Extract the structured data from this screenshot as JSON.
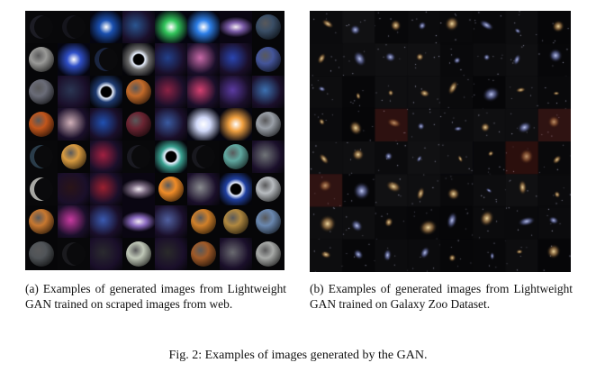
{
  "figure": {
    "caption": "Fig. 2: Examples of images generated by the GAN.",
    "panel_a": {
      "caption": "(a) Examples of generated images from Lightweight GAN trained on scraped images from web.",
      "grid_rows": 8,
      "grid_cols": 8
    },
    "panel_b": {
      "caption": "(b) Examples of generated images from Lightweight GAN trained on Galaxy Zoo Dataset.",
      "grid_rows": 8,
      "grid_cols": 8
    }
  },
  "colors": {
    "background": "#ffffff",
    "text": "#111111",
    "tiles_a": [
      [
        "#1c1c24",
        "#15151c",
        "#1a50b0",
        "#2a5590",
        "#31c45a",
        "#2d7fe8",
        "#7b5ca8",
        "#3a4e66"
      ],
      [
        "#9a9a98",
        "#3050c8",
        "#1a2540",
        "#6a6a6a",
        "#22408a",
        "#c86aa8",
        "#2a45b0",
        "#44559a"
      ],
      [
        "#6a6c78",
        "#2a3552",
        "#1e3a70",
        "#c26a2a",
        "#8a2244",
        "#d44070",
        "#5a3aa0",
        "#3c70b0"
      ],
      [
        "#c2561c",
        "#d0b0b8",
        "#2050b0",
        "#6a2432",
        "#3a5aa0",
        "#d0d8f8",
        "#f0a040",
        "#9aa0a8"
      ],
      [
        "#2a3c4a",
        "#d89a40",
        "#a02040",
        "#1a1a22",
        "#3aa090",
        "#18181e",
        "#60a8a0",
        "#707478"
      ],
      [
        "#a8a8a4",
        "#2a1418",
        "#9a2030",
        "#7a6a80",
        "#f08c28",
        "#8a8c90",
        "#2040a0",
        "#b8bcc0"
      ],
      [
        "#c87830",
        "#c83aa0",
        "#3a5ab0",
        "#8a6abf",
        "#5060a0",
        "#d0802a",
        "#b08840",
        "#6a88b0"
      ],
      [
        "#505458",
        "#1a1a1e",
        "#2a2a2e",
        "#c0c8b8",
        "#2a2a2a",
        "#a05a28",
        "#6a6a70",
        "#a8aaa8"
      ]
    ],
    "tile_kind_a": [
      [
        "crescent",
        "crescent",
        "burst",
        "nebula",
        "burst",
        "burst",
        "spiral",
        "planet"
      ],
      [
        "planet",
        "burst",
        "crescent",
        "ring",
        "nebula",
        "nebula",
        "nebula",
        "planet"
      ],
      [
        "planet",
        "nebula",
        "ring",
        "planet",
        "nebula",
        "nebula",
        "nebula",
        "nebula"
      ],
      [
        "planet",
        "nebula",
        "nebula",
        "planet",
        "nebula",
        "burst",
        "burst",
        "planet"
      ],
      [
        "crescent",
        "planet",
        "nebula",
        "crescent",
        "ring",
        "crescent",
        "planet",
        "nebula"
      ],
      [
        "crescent",
        "nebula",
        "nebula",
        "spiral",
        "planet",
        "nebula",
        "ring",
        "planet"
      ],
      [
        "planet",
        "nebula",
        "nebula",
        "spiral",
        "nebula",
        "planet",
        "planet",
        "planet"
      ],
      [
        "planet",
        "crescent",
        "nebula",
        "planet",
        "nebula",
        "planet",
        "nebula",
        "planet"
      ]
    ]
  }
}
